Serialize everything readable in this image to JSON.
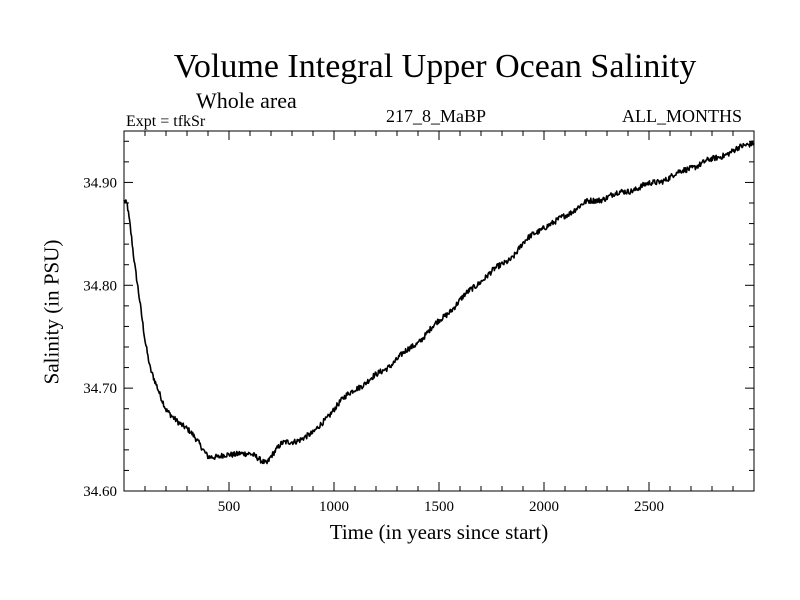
{
  "chart_data": {
    "type": "line",
    "title": "Volume Integral Upper Ocean Salinity",
    "subtitle": "Whole area",
    "expt_label": "Expt = tfkSr",
    "run_label": "217_8_MaBP",
    "months_label": "ALL_MONTHS",
    "xlabel": "Time (in years since start)",
    "ylabel": "Salinity (in PSU)",
    "xlim": [
      0,
      3000
    ],
    "ylim": [
      34.6,
      34.95
    ],
    "xticks": [
      500,
      1000,
      1500,
      2000,
      2500
    ],
    "xtick_labels": [
      "500",
      "1000",
      "1500",
      "2000",
      "2500"
    ],
    "yticks": [
      34.6,
      34.7,
      34.8,
      34.9
    ],
    "ytick_labels": [
      "34.60",
      "34.70",
      "34.80",
      "34.90"
    ],
    "line_color": "#000000",
    "series": [
      {
        "name": "salinity",
        "x": [
          0,
          15,
          30,
          50,
          75,
          100,
          125,
          150,
          175,
          200,
          250,
          300,
          350,
          400,
          450,
          500,
          550,
          600,
          650,
          680,
          700,
          750,
          800,
          850,
          900,
          950,
          1000,
          1050,
          1100,
          1150,
          1200,
          1300,
          1400,
          1500,
          1600,
          1700,
          1800,
          1850,
          1900,
          1950,
          2000,
          2050,
          2100,
          2150,
          2200,
          2300,
          2400,
          2500,
          2600,
          2650,
          2700,
          2750,
          2800,
          2850,
          2900,
          2950,
          3000
        ],
        "y": [
          34.882,
          34.878,
          34.855,
          34.82,
          34.785,
          34.748,
          34.72,
          34.705,
          34.69,
          34.678,
          34.67,
          34.66,
          34.648,
          34.635,
          34.632,
          34.635,
          34.638,
          34.635,
          34.63,
          34.628,
          34.635,
          34.645,
          34.648,
          34.652,
          34.655,
          34.668,
          34.68,
          34.69,
          34.7,
          34.705,
          34.712,
          34.728,
          34.745,
          34.765,
          34.785,
          34.805,
          34.82,
          34.828,
          34.84,
          34.85,
          34.857,
          34.86,
          34.868,
          34.875,
          34.88,
          34.886,
          34.892,
          34.898,
          34.905,
          34.91,
          34.915,
          34.918,
          34.922,
          34.927,
          34.93,
          34.935,
          34.94
        ]
      }
    ]
  }
}
